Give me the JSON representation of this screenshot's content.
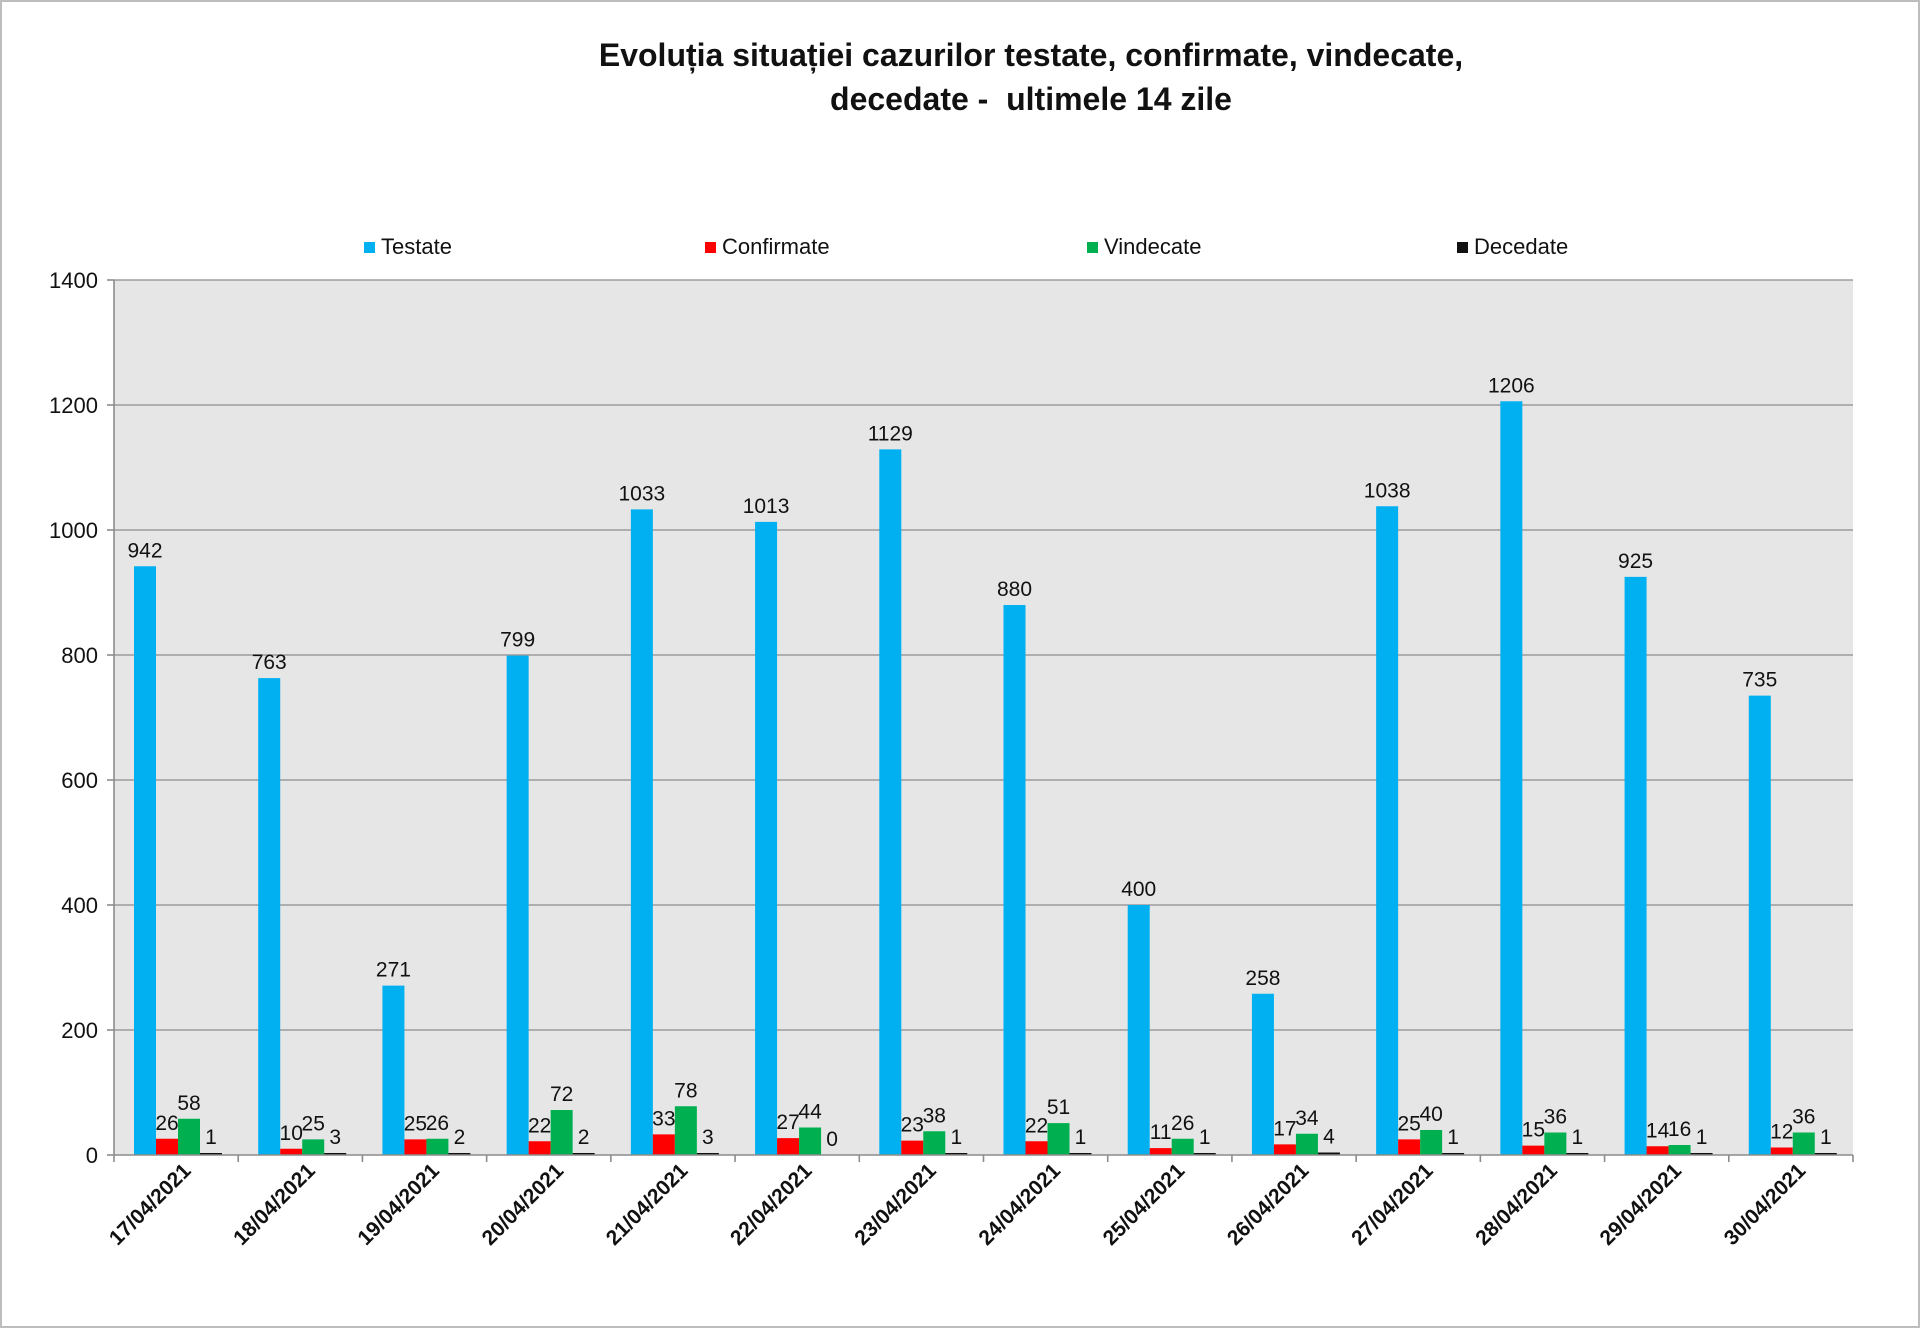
{
  "chart_data": {
    "type": "bar",
    "title": [
      "Evoluția situației cazurilor testate, confirmate, vindecate,",
      "decedate -  ultimele 14 zile"
    ],
    "categories": [
      "17/04/2021",
      "18/04/2021",
      "19/04/2021",
      "20/04/2021",
      "21/04/2021",
      "22/04/2021",
      "23/04/2021",
      "24/04/2021",
      "25/04/2021",
      "26/04/2021",
      "27/04/2021",
      "28/04/2021",
      "29/04/2021",
      "30/04/2021"
    ],
    "series": [
      {
        "name": "Testate",
        "color": "#00b0f0",
        "values": [
          942,
          763,
          271,
          799,
          1033,
          1013,
          1129,
          880,
          400,
          258,
          1038,
          1206,
          925,
          735
        ]
      },
      {
        "name": "Confirmate",
        "color": "#ff0000",
        "values": [
          26,
          10,
          25,
          22,
          33,
          27,
          23,
          22,
          11,
          17,
          25,
          15,
          14,
          12
        ]
      },
      {
        "name": "Vindecate",
        "color": "#00b050",
        "values": [
          58,
          25,
          26,
          72,
          78,
          44,
          38,
          51,
          26,
          34,
          40,
          36,
          16,
          36
        ]
      },
      {
        "name": "Decedate",
        "color": "#111111",
        "values": [
          1,
          3,
          2,
          2,
          3,
          0,
          1,
          1,
          1,
          4,
          1,
          1,
          1,
          1
        ]
      }
    ],
    "ylim": [
      0,
      1400
    ],
    "yticks": [
      0,
      200,
      400,
      600,
      800,
      1000,
      1200,
      1400
    ],
    "grid": true,
    "legend": "top",
    "plot_background": "#e6e6e6"
  }
}
